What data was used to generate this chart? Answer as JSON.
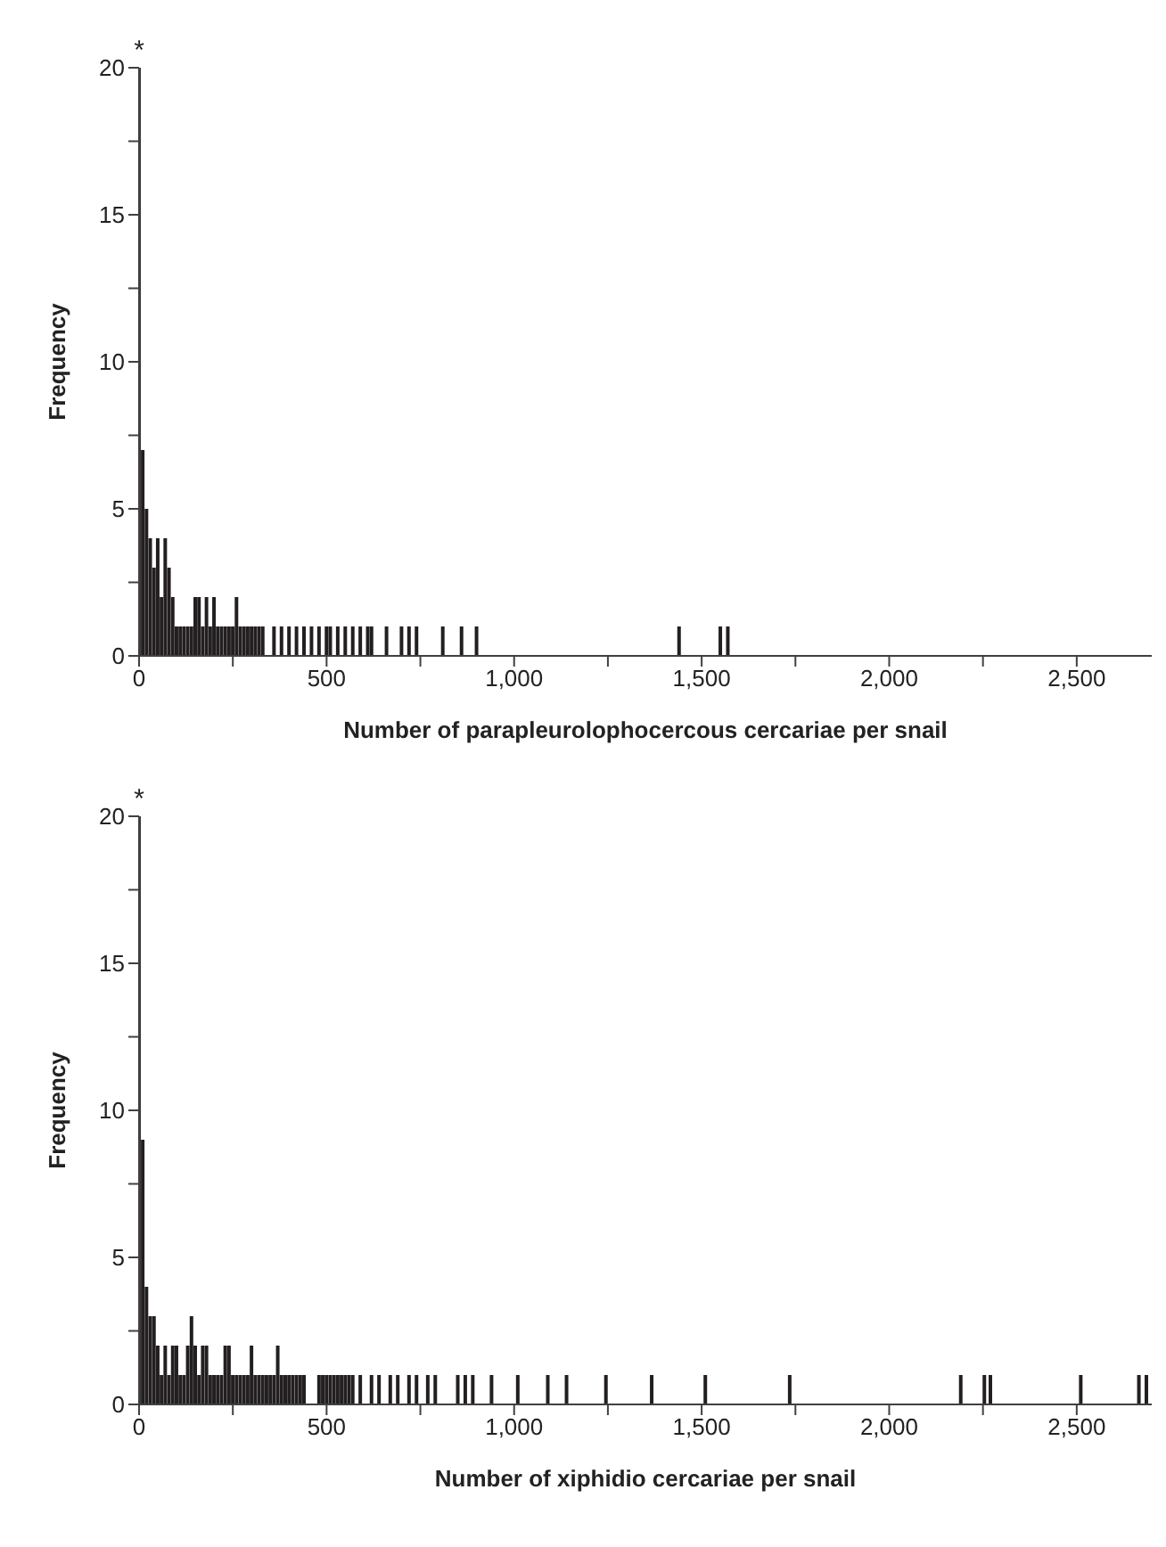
{
  "chart_data": [
    {
      "type": "bar",
      "xlabel": "Number of parapleurolophocercous cercariae per snail",
      "ylabel": "Frequency",
      "color": "#231f20",
      "x": [
        0,
        10,
        20,
        30,
        40,
        50,
        60,
        70,
        80,
        90,
        100,
        110,
        120,
        130,
        140,
        150,
        160,
        170,
        180,
        190,
        200,
        210,
        220,
        230,
        240,
        250,
        260,
        270,
        280,
        290,
        300,
        310,
        320,
        330,
        360,
        380,
        400,
        420,
        440,
        460,
        480,
        500,
        510,
        530,
        550,
        570,
        590,
        610,
        620,
        660,
        700,
        720,
        740,
        810,
        860,
        900,
        1440,
        1550,
        1570
      ],
      "values": [
        20,
        7,
        5,
        4,
        3,
        4,
        2,
        4,
        3,
        2,
        1,
        1,
        1,
        1,
        1,
        2,
        2,
        1,
        2,
        1,
        2,
        1,
        1,
        1,
        1,
        1,
        2,
        1,
        1,
        1,
        1,
        1,
        1,
        1,
        1,
        1,
        1,
        1,
        1,
        1,
        1,
        1,
        1,
        1,
        1,
        1,
        1,
        1,
        1,
        1,
        1,
        1,
        1,
        1,
        1,
        1,
        1,
        1,
        1
      ],
      "xlim": [
        0,
        2700
      ],
      "xticks": [
        0,
        {
          "value": 250,
          "label": null
        },
        {
          "value": 500,
          "label": "500"
        },
        {
          "value": 750,
          "label": null
        },
        {
          "value": 1000,
          "label": "1,000"
        },
        {
          "value": 1250,
          "label": null
        },
        {
          "value": 1500,
          "label": "1,500"
        },
        {
          "value": 1750,
          "label": null
        },
        {
          "value": 2000,
          "label": "2,000"
        },
        {
          "value": 2250,
          "label": null
        },
        {
          "value": 2500,
          "label": "2,500"
        }
      ],
      "ylim": [
        0,
        20
      ],
      "yticks": [
        0,
        {
          "value": 2.5,
          "label": null
        },
        5,
        {
          "value": 7.5,
          "label": null
        },
        10,
        {
          "value": 12.5,
          "label": null
        },
        15,
        {
          "value": 17.5,
          "label": null
        },
        20
      ],
      "annotations": [
        {
          "text": "*",
          "x": 0,
          "y": 20
        }
      ]
    },
    {
      "type": "bar",
      "xlabel": "Number of xiphidio cercariae per snail",
      "ylabel": "Frequency",
      "color": "#231f20",
      "x": [
        0,
        10,
        20,
        30,
        40,
        50,
        60,
        70,
        80,
        90,
        100,
        110,
        120,
        130,
        140,
        150,
        160,
        170,
        180,
        190,
        200,
        210,
        220,
        230,
        240,
        250,
        260,
        270,
        280,
        290,
        300,
        310,
        320,
        330,
        340,
        350,
        360,
        370,
        380,
        390,
        400,
        410,
        420,
        430,
        440,
        480,
        490,
        500,
        510,
        520,
        530,
        540,
        550,
        560,
        570,
        590,
        620,
        640,
        670,
        690,
        720,
        740,
        770,
        790,
        850,
        870,
        890,
        940,
        1010,
        1090,
        1140,
        1245,
        1367,
        1510,
        1735,
        2191,
        2254,
        2270,
        2511,
        2666,
        2686
      ],
      "values": [
        20,
        9,
        4,
        3,
        3,
        2,
        1,
        2,
        1,
        2,
        2,
        1,
        1,
        2,
        3,
        2,
        1,
        2,
        2,
        1,
        1,
        1,
        1,
        2,
        2,
        1,
        1,
        1,
        1,
        1,
        2,
        1,
        1,
        1,
        1,
        1,
        1,
        2,
        1,
        1,
        1,
        1,
        1,
        1,
        1,
        1,
        1,
        1,
        1,
        1,
        1,
        1,
        1,
        1,
        1,
        1,
        1,
        1,
        1,
        1,
        1,
        1,
        1,
        1,
        1,
        1,
        1,
        1,
        1,
        1,
        1,
        1,
        1,
        1,
        1,
        1,
        1,
        1,
        1,
        1,
        1
      ],
      "xlim": [
        0,
        2700
      ],
      "xticks": [
        0,
        {
          "value": 250,
          "label": null
        },
        {
          "value": 500,
          "label": "500"
        },
        {
          "value": 750,
          "label": null
        },
        {
          "value": 1000,
          "label": "1,000"
        },
        {
          "value": 1250,
          "label": null
        },
        {
          "value": 1500,
          "label": "1,500"
        },
        {
          "value": 1750,
          "label": null
        },
        {
          "value": 2000,
          "label": "2,000"
        },
        {
          "value": 2250,
          "label": null
        },
        {
          "value": 2500,
          "label": "2,500"
        }
      ],
      "ylim": [
        0,
        20
      ],
      "yticks": [
        0,
        {
          "value": 2.5,
          "label": null
        },
        5,
        {
          "value": 7.5,
          "label": null
        },
        10,
        {
          "value": 12.5,
          "label": null
        },
        15,
        {
          "value": 17.5,
          "label": null
        },
        20
      ],
      "annotations": [
        {
          "text": "*",
          "x": 0,
          "y": 20
        }
      ]
    }
  ]
}
